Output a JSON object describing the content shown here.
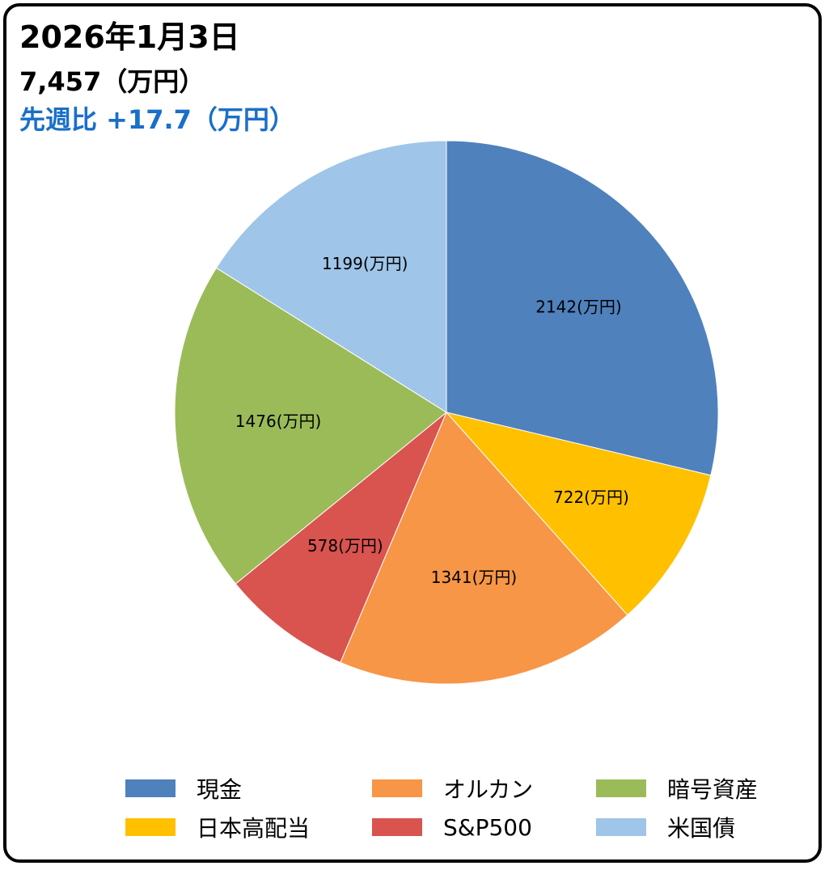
{
  "header": {
    "title": "2026年1月3日",
    "total": "7,457（万円）",
    "change": "先週比 +17.7（万円）"
  },
  "colors": {
    "change_text": "#1a6fc9",
    "border": "#000000"
  },
  "chart_data": {
    "type": "pie",
    "categories": [
      "現金",
      "日本高配当",
      "オルカン",
      "S&P500",
      "暗号資産",
      "米国債"
    ],
    "values": [
      2142,
      722,
      1341,
      578,
      1476,
      1199
    ],
    "data_labels": [
      "2142(万円)",
      "722(万円)",
      "1341(万円)",
      "578(万円)",
      "1476(万円)",
      "1199(万円)"
    ],
    "colors": [
      "#4f81bd",
      "#ffc000",
      "#f79646",
      "#d9534f",
      "#9bbb59",
      "#9fc5e8"
    ],
    "start": "12 o'clock",
    "direction": "clockwise",
    "legend_position": "bottom"
  },
  "legend": {
    "items": [
      {
        "label": "現金",
        "color": "#4f81bd"
      },
      {
        "label": "オルカン",
        "color": "#f79646"
      },
      {
        "label": "暗号資産",
        "color": "#9bbb59"
      },
      {
        "label": "日本高配当",
        "color": "#ffc000"
      },
      {
        "label": "S&P500",
        "color": "#d9534f"
      },
      {
        "label": "米国債",
        "color": "#9fc5e8"
      }
    ]
  }
}
